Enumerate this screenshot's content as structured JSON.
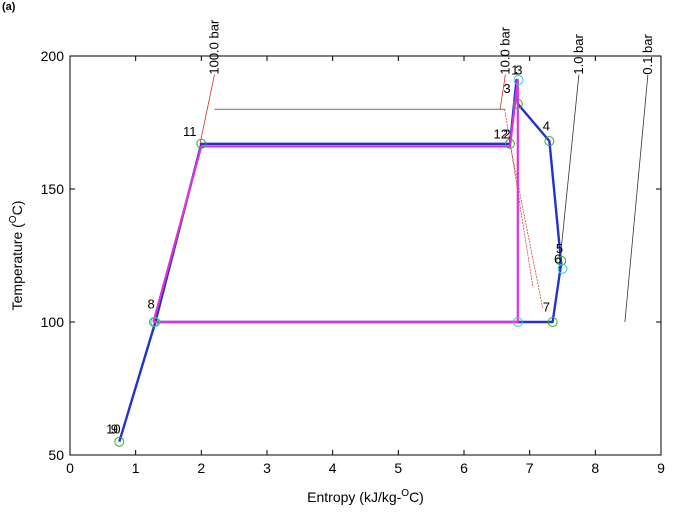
{
  "panel_label": "(a)",
  "chart_data": {
    "type": "line",
    "title": "",
    "xlabel": "Entropy (kJ/kg-",
    "xlabel_sup": "O",
    "xlabel_end": "C)",
    "ylabel": "Temperature (",
    "ylabel_sup": "O",
    "ylabel_end": "C)",
    "xlim": [
      0,
      9
    ],
    "ylim": [
      50,
      200
    ],
    "xticks": [
      "0",
      "1",
      "2",
      "3",
      "4",
      "5",
      "6",
      "7",
      "8",
      "9"
    ],
    "yticks": [
      "50",
      "100",
      "150",
      "200"
    ],
    "grid": false,
    "isobars": [
      {
        "label": "100.0 bar",
        "color": "#cc3322",
        "points": [
          [
            1.98,
            167
          ],
          [
            2.2,
            193
          ]
        ]
      },
      {
        "label": "10.0 bar",
        "color": "#cc3322",
        "points": [
          [
            6.55,
            180
          ],
          [
            6.63,
            193
          ]
        ]
      },
      {
        "label": "1.0 bar",
        "color": "#333333",
        "points": [
          [
            7.45,
            120
          ],
          [
            7.75,
            193
          ]
        ]
      },
      {
        "label": "0.1 bar",
        "color": "#333333",
        "points": [
          [
            8.45,
            100
          ],
          [
            8.8,
            193
          ]
        ]
      }
    ],
    "saturation_lines": [
      {
        "color": "#cc3322",
        "points": [
          [
            6.7,
            167
          ],
          [
            7.2,
            105
          ]
        ]
      },
      {
        "color": "#cc3322",
        "points": [
          [
            6.62,
            180
          ],
          [
            7.05,
            113
          ]
        ]
      }
    ],
    "thin_lines": [
      {
        "color": "#222222",
        "points": [
          [
            2.2,
            180
          ],
          [
            6.62,
            180
          ]
        ]
      }
    ],
    "series": [
      {
        "color": "#2233cc",
        "points": [
          [
            0.75,
            55
          ],
          [
            1.3,
            100
          ],
          [
            6.82,
            100
          ],
          [
            7.35,
            100
          ],
          [
            7.48,
            122
          ],
          [
            7.3,
            168
          ],
          [
            6.82,
            182
          ],
          [
            6.8,
            191
          ],
          [
            6.7,
            167
          ],
          [
            2.0,
            167
          ],
          [
            1.3,
            100
          ],
          [
            0.75,
            55
          ]
        ]
      },
      {
        "color": "#dd33dd",
        "points": [
          [
            1.27,
            100
          ],
          [
            6.82,
            100
          ],
          [
            6.82,
            191
          ],
          [
            6.7,
            166
          ],
          [
            2.0,
            166
          ],
          [
            1.27,
            100
          ]
        ]
      }
    ],
    "markers": [
      {
        "x": 0.75,
        "y": 55,
        "color": "#33aa33"
      },
      {
        "x": 1.28,
        "y": 100,
        "color": "#33aa33"
      },
      {
        "x": 2.0,
        "y": 167,
        "color": "#33aa33"
      },
      {
        "x": 6.7,
        "y": 167,
        "color": "#33aa33"
      },
      {
        "x": 6.82,
        "y": 182,
        "color": "#33aa33"
      },
      {
        "x": 6.83,
        "y": 191,
        "color": "#33cccc"
      },
      {
        "x": 7.3,
        "y": 168,
        "color": "#33aa33"
      },
      {
        "x": 7.48,
        "y": 123,
        "color": "#33aa33"
      },
      {
        "x": 7.5,
        "y": 120,
        "color": "#33cccc"
      },
      {
        "x": 7.35,
        "y": 100,
        "color": "#33aa33"
      },
      {
        "x": 6.82,
        "y": 100,
        "color": "#33cccc"
      },
      {
        "x": 1.3,
        "y": 100,
        "color": "#33cccc"
      }
    ],
    "point_labels": [
      {
        "text": "10",
        "x": 0.55,
        "y": 58
      },
      {
        "text": "9",
        "x": 0.62,
        "y": 58
      },
      {
        "text": "8",
        "x": 1.18,
        "y": 105
      },
      {
        "text": "11",
        "x": 1.72,
        "y": 170
      },
      {
        "text": "12",
        "x": 6.45,
        "y": 169
      },
      {
        "text": "2",
        "x": 6.6,
        "y": 169
      },
      {
        "text": "3",
        "x": 6.6,
        "y": 186
      },
      {
        "text": "1",
        "x": 6.72,
        "y": 193
      },
      {
        "text": "3",
        "x": 6.78,
        "y": 193
      },
      {
        "text": "4",
        "x": 7.2,
        "y": 172
      },
      {
        "text": "5",
        "x": 7.4,
        "y": 126
      },
      {
        "text": "6",
        "x": 7.37,
        "y": 122
      },
      {
        "text": "7",
        "x": 7.2,
        "y": 104
      }
    ]
  }
}
